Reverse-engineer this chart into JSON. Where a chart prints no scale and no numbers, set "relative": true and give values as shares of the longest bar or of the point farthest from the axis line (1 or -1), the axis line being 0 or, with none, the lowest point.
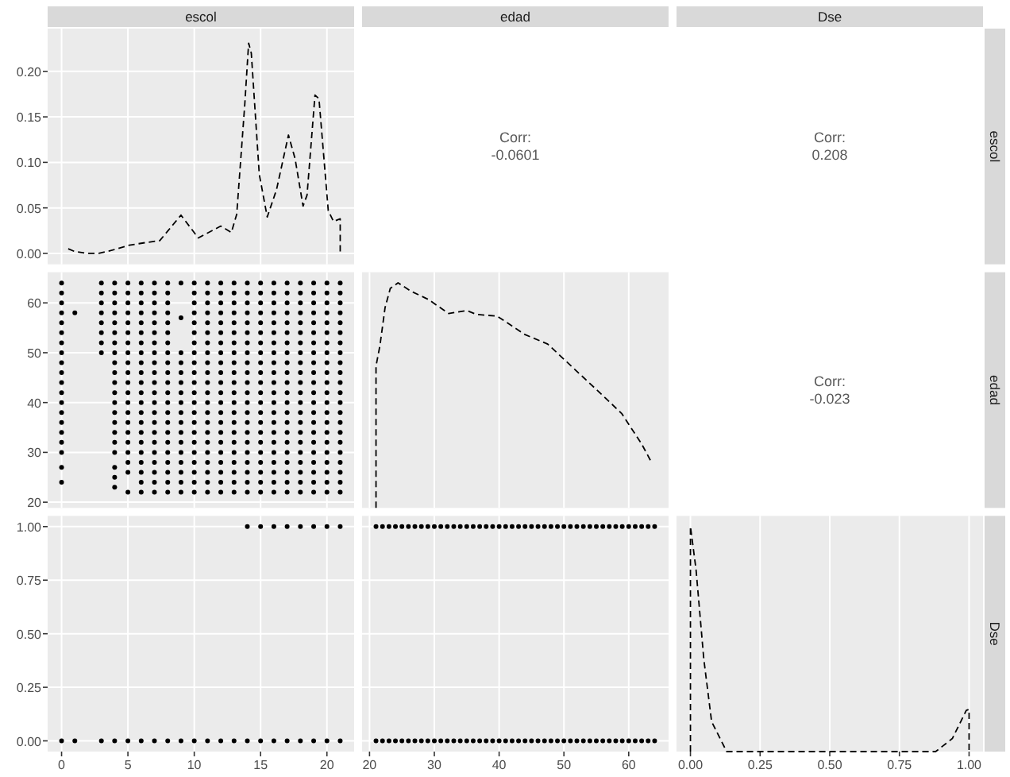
{
  "chart_data": [
    {
      "type": "line",
      "title": "escol",
      "x": [
        0.5,
        1,
        1.9,
        2.8,
        3.7,
        5.1,
        6.4,
        7.4,
        9,
        10.3,
        12,
        12.8,
        13.2,
        13.8,
        14.1,
        14.3,
        14.9,
        15.5,
        16.2,
        17.1,
        17.6,
        18.2,
        18.5,
        19.1,
        19.4,
        20.1,
        20.5,
        21,
        21
      ],
      "values": [
        0.005,
        0.002,
        0,
        0,
        0.003,
        0.009,
        0.012,
        0.014,
        0.042,
        0.017,
        0.03,
        0.023,
        0.043,
        0.162,
        0.231,
        0.22,
        0.087,
        0.04,
        0.07,
        0.13,
        0.104,
        0.052,
        0.064,
        0.174,
        0.17,
        0.047,
        0.035,
        0.038,
        0
      ],
      "color": "#000000",
      "line_style": "dashed",
      "xlim": [
        -1.05,
        22.05
      ],
      "xticks": [
        0,
        5,
        10,
        15,
        20
      ],
      "ylim": [
        -0.012,
        0.247
      ],
      "yticks": [
        {
          "value": 0,
          "label": "0.00"
        },
        {
          "value": 0.05,
          "label": "0.05"
        },
        {
          "value": 0.1,
          "label": "0.10"
        },
        {
          "value": 0.15,
          "label": "0.15"
        },
        {
          "value": 0.2,
          "label": "0.20"
        }
      ],
      "grid": true,
      "tick_labels": "y"
    },
    {
      "type": "other",
      "title": "edad",
      "annotations": [
        "Corr:",
        "-0.0601"
      ]
    },
    {
      "type": "other",
      "title": "Dse",
      "y2label": "escol",
      "annotations": [
        "Corr:",
        "0.208"
      ]
    },
    {
      "type": "scatter",
      "marker": "circle",
      "xlim": [
        -1.05,
        22.05
      ],
      "xticks": [
        0,
        5,
        10,
        15,
        20
      ],
      "ylim": [
        18.85,
        66.15
      ],
      "yticks": [
        20,
        30,
        40,
        50,
        60
      ],
      "grid": true,
      "tick_labels": "y",
      "series": [
        {
          "color": "#000000",
          "x": [
            0,
            0,
            0,
            0,
            0,
            0,
            0,
            0,
            0,
            0,
            0,
            0,
            0,
            0,
            0,
            0,
            0,
            0,
            0,
            0
          ],
          "values": [
            24,
            27,
            30,
            32,
            34,
            36,
            38,
            40,
            42,
            44,
            46,
            48,
            50,
            52,
            54,
            56,
            58,
            60,
            62,
            64
          ]
        },
        {
          "color": "#000000",
          "x": [
            1
          ],
          "values": [
            58
          ]
        },
        {
          "color": "#000000",
          "x": [
            3,
            3,
            3,
            3,
            3,
            3,
            3,
            3
          ],
          "values": [
            50,
            52,
            54,
            56,
            58,
            60,
            62,
            64
          ]
        },
        {
          "color": "#000000",
          "x": [
            4,
            4,
            4,
            4,
            4,
            4,
            4,
            4,
            4,
            4,
            4,
            4,
            4,
            4,
            4,
            4,
            4,
            4,
            4,
            4,
            4
          ],
          "values": [
            23,
            25,
            27,
            30,
            32,
            34,
            36,
            38,
            40,
            42,
            44,
            46,
            48,
            50,
            52,
            54,
            56,
            58,
            60,
            62,
            64
          ]
        },
        {
          "color": "#000000",
          "x": [
            5,
            5,
            5,
            5,
            5,
            5,
            5,
            5,
            5,
            5,
            5,
            5,
            5,
            5,
            5,
            5,
            5,
            5,
            5,
            5,
            5
          ],
          "values": [
            22,
            26,
            28,
            30,
            32,
            34,
            36,
            38,
            40,
            42,
            44,
            46,
            48,
            50,
            52,
            54,
            56,
            58,
            60,
            62,
            64
          ]
        },
        {
          "color": "#000000",
          "x": [
            6,
            6,
            6,
            6,
            6,
            6,
            6,
            6,
            6,
            6,
            6,
            6,
            6,
            6,
            6,
            6,
            6,
            6,
            6,
            6,
            6,
            6
          ],
          "values": [
            22,
            24,
            26,
            28,
            30,
            32,
            34,
            36,
            38,
            40,
            42,
            44,
            46,
            48,
            50,
            52,
            54,
            56,
            58,
            60,
            62,
            64
          ]
        },
        {
          "color": "#000000",
          "x": [
            7,
            7,
            7,
            7,
            7,
            7,
            7,
            7,
            7,
            7,
            7,
            7,
            7,
            7,
            7,
            7,
            7,
            7,
            7,
            7,
            7,
            7
          ],
          "values": [
            22,
            24,
            26,
            28,
            30,
            32,
            34,
            36,
            38,
            40,
            42,
            44,
            46,
            48,
            50,
            52,
            54,
            56,
            58,
            60,
            62,
            64
          ]
        },
        {
          "color": "#000000",
          "x": [
            8,
            8,
            8,
            8,
            8,
            8,
            8,
            8,
            8,
            8,
            8,
            8,
            8,
            8,
            8,
            8,
            8,
            8,
            8,
            8,
            8,
            8
          ],
          "values": [
            22,
            24,
            26,
            28,
            30,
            32,
            34,
            36,
            38,
            40,
            42,
            44,
            46,
            48,
            50,
            52,
            54,
            56,
            58,
            60,
            62,
            64
          ]
        },
        {
          "color": "#000000",
          "x": [
            9,
            9,
            9,
            9,
            9,
            9,
            9,
            9,
            9,
            9,
            9,
            9,
            9,
            9,
            9,
            9,
            9
          ],
          "values": [
            22,
            24,
            26,
            28,
            30,
            32,
            34,
            36,
            38,
            40,
            42,
            44,
            46,
            48,
            50,
            57,
            64
          ]
        },
        {
          "color": "#000000",
          "x": [
            10,
            10,
            10,
            10,
            10,
            10,
            10,
            10,
            10,
            10,
            10,
            10,
            10,
            10,
            10,
            10,
            10,
            10,
            10,
            10,
            10,
            10
          ],
          "values": [
            22,
            24,
            26,
            28,
            30,
            32,
            34,
            36,
            38,
            40,
            42,
            44,
            46,
            48,
            50,
            52,
            54,
            56,
            58,
            60,
            62,
            64
          ]
        },
        {
          "color": "#000000",
          "x": [
            11,
            11,
            11,
            11,
            11,
            11,
            11,
            11,
            11,
            11,
            11,
            11,
            11,
            11,
            11,
            11,
            11,
            11,
            11,
            11,
            11,
            11
          ],
          "values": [
            22,
            24,
            26,
            28,
            30,
            32,
            34,
            36,
            38,
            40,
            42,
            44,
            46,
            48,
            50,
            52,
            54,
            56,
            58,
            60,
            62,
            64
          ]
        },
        {
          "color": "#000000",
          "x": [
            12,
            12,
            12,
            12,
            12,
            12,
            12,
            12,
            12,
            12,
            12,
            12,
            12,
            12,
            12,
            12,
            12,
            12,
            12,
            12,
            12,
            12
          ],
          "values": [
            22,
            24,
            26,
            28,
            30,
            32,
            34,
            36,
            38,
            40,
            42,
            44,
            46,
            48,
            50,
            52,
            54,
            56,
            58,
            60,
            62,
            64
          ]
        },
        {
          "color": "#000000",
          "x": [
            13,
            13,
            13,
            13,
            13,
            13,
            13,
            13,
            13,
            13,
            13,
            13,
            13,
            13,
            13,
            13,
            13,
            13,
            13,
            13,
            13,
            13
          ],
          "values": [
            22,
            24,
            26,
            28,
            30,
            32,
            34,
            36,
            38,
            40,
            42,
            44,
            46,
            48,
            50,
            52,
            54,
            56,
            58,
            60,
            62,
            64
          ]
        },
        {
          "color": "#000000",
          "x": [
            14,
            14,
            14,
            14,
            14,
            14,
            14,
            14,
            14,
            14,
            14,
            14,
            14,
            14,
            14,
            14,
            14,
            14,
            14,
            14,
            14,
            14
          ],
          "values": [
            22,
            24,
            26,
            28,
            30,
            32,
            34,
            36,
            38,
            40,
            42,
            44,
            46,
            48,
            50,
            52,
            54,
            56,
            58,
            60,
            62,
            64
          ]
        },
        {
          "color": "#000000",
          "x": [
            15,
            15,
            15,
            15,
            15,
            15,
            15,
            15,
            15,
            15,
            15,
            15,
            15,
            15,
            15,
            15,
            15,
            15,
            15,
            15,
            15,
            15
          ],
          "values": [
            22,
            24,
            26,
            28,
            30,
            32,
            34,
            36,
            38,
            40,
            42,
            44,
            46,
            48,
            50,
            52,
            54,
            56,
            58,
            60,
            62,
            64
          ]
        },
        {
          "color": "#000000",
          "x": [
            16,
            16,
            16,
            16,
            16,
            16,
            16,
            16,
            16,
            16,
            16,
            16,
            16,
            16,
            16,
            16,
            16,
            16,
            16,
            16,
            16,
            16
          ],
          "values": [
            22,
            24,
            26,
            28,
            30,
            32,
            34,
            36,
            38,
            40,
            42,
            44,
            46,
            48,
            50,
            52,
            54,
            56,
            58,
            60,
            62,
            64
          ]
        },
        {
          "color": "#000000",
          "x": [
            17,
            17,
            17,
            17,
            17,
            17,
            17,
            17,
            17,
            17,
            17,
            17,
            17,
            17,
            17,
            17,
            17,
            17,
            17,
            17,
            17,
            17
          ],
          "values": [
            22,
            24,
            26,
            28,
            30,
            32,
            34,
            36,
            38,
            40,
            42,
            44,
            46,
            48,
            50,
            52,
            54,
            56,
            58,
            60,
            62,
            64
          ]
        },
        {
          "color": "#000000",
          "x": [
            18,
            18,
            18,
            18,
            18,
            18,
            18,
            18,
            18,
            18,
            18,
            18,
            18,
            18,
            18,
            18,
            18,
            18,
            18,
            18,
            18,
            18
          ],
          "values": [
            22,
            24,
            26,
            28,
            30,
            32,
            34,
            36,
            38,
            40,
            42,
            44,
            46,
            48,
            50,
            52,
            54,
            56,
            58,
            60,
            62,
            64
          ]
        },
        {
          "color": "#000000",
          "x": [
            19,
            19,
            19,
            19,
            19,
            19,
            19,
            19,
            19,
            19,
            19,
            19,
            19,
            19,
            19,
            19,
            19,
            19,
            19,
            19,
            19,
            19
          ],
          "values": [
            22,
            24,
            26,
            28,
            30,
            32,
            34,
            36,
            38,
            40,
            42,
            44,
            46,
            48,
            50,
            52,
            54,
            56,
            58,
            60,
            62,
            64
          ]
        },
        {
          "color": "#000000",
          "x": [
            20,
            20,
            20,
            20,
            20,
            20,
            20,
            20,
            20,
            20,
            20,
            20,
            20,
            20,
            20,
            20,
            20,
            20,
            20,
            20,
            20,
            20
          ],
          "values": [
            22,
            24,
            26,
            28,
            30,
            32,
            34,
            36,
            38,
            40,
            42,
            44,
            46,
            48,
            50,
            52,
            54,
            56,
            58,
            60,
            62,
            64
          ]
        },
        {
          "color": "#000000",
          "x": [
            21,
            21,
            21,
            21,
            21,
            21,
            21,
            21,
            21,
            21,
            21,
            21,
            21,
            21,
            21,
            21,
            21,
            21,
            21,
            21,
            21,
            21
          ],
          "values": [
            22,
            24,
            26,
            28,
            30,
            32,
            34,
            36,
            38,
            40,
            42,
            44,
            46,
            48,
            50,
            52,
            54,
            56,
            58,
            60,
            62,
            64
          ]
        }
      ]
    },
    {
      "type": "line",
      "relative": true,
      "x": [
        21,
        21,
        21.6,
        22.4,
        23.2,
        24.4,
        26.4,
        29.1,
        32.2,
        35,
        36.5,
        39.7,
        44,
        47.5,
        53,
        56.2,
        58.9,
        62,
        63.6
      ],
      "values": [
        0,
        0.63,
        0.72,
        0.89,
        0.975,
        1,
        0.963,
        0.926,
        0.864,
        0.877,
        0.86,
        0.852,
        0.77,
        0.728,
        0.58,
        0.494,
        0.42,
        0.284,
        0.198
      ],
      "color": "#000000",
      "line_style": "dashed",
      "xlim": [
        18.85,
        66.15
      ],
      "xticks": [
        20,
        30,
        40,
        50,
        60
      ],
      "grid": "x",
      "tick_labels": false
    },
    {
      "type": "other",
      "y2label": "edad",
      "annotations": [
        "Corr:",
        "-0.023"
      ]
    },
    {
      "type": "scatter",
      "marker": "circle",
      "xlim": [
        -1.05,
        22.05
      ],
      "xticks": [
        0,
        5,
        10,
        15,
        20
      ],
      "ylim": [
        -0.05,
        1.05
      ],
      "yticks": [
        {
          "value": 0,
          "label": "0.00"
        },
        {
          "value": 0.25,
          "label": "0.25"
        },
        {
          "value": 0.5,
          "label": "0.50"
        },
        {
          "value": 0.75,
          "label": "0.75"
        },
        {
          "value": 1,
          "label": "1.00"
        }
      ],
      "grid": true,
      "series": [
        {
          "color": "#000000",
          "x": [
            0,
            1,
            3,
            4,
            5,
            6,
            7,
            8,
            9,
            10,
            11,
            12,
            13,
            14,
            15,
            16,
            17,
            18,
            19,
            20,
            21
          ],
          "values": [
            0,
            0,
            0,
            0,
            0,
            0,
            0,
            0,
            0,
            0,
            0,
            0,
            0,
            0,
            0,
            0,
            0,
            0,
            0,
            0,
            0
          ]
        },
        {
          "color": "#000000",
          "x": [
            14,
            15,
            16,
            17,
            18,
            19,
            20,
            21
          ],
          "values": [
            1,
            1,
            1,
            1,
            1,
            1,
            1,
            1
          ]
        }
      ]
    },
    {
      "type": "scatter",
      "marker": "circle",
      "xlim": [
        18.85,
        66.15
      ],
      "xticks": [
        20,
        30,
        40,
        50,
        60
      ],
      "ylim": [
        -0.05,
        1.05
      ],
      "yticks": [
        0,
        0.25,
        0.5,
        0.75,
        1
      ],
      "grid": true,
      "tick_labels": "x",
      "series": [
        {
          "color": "#000000",
          "x": [
            21,
            22,
            23,
            24,
            25,
            26,
            27,
            28,
            29,
            30,
            31,
            32,
            33,
            34,
            35,
            36,
            37,
            38,
            39,
            40,
            41,
            42,
            43,
            44,
            45,
            46,
            47,
            48,
            49,
            50,
            51,
            52,
            53,
            54,
            55,
            56,
            57,
            58,
            59,
            60,
            61,
            62,
            63,
            64
          ],
          "values": [
            0,
            0,
            0,
            0,
            0,
            0,
            0,
            0,
            0,
            0,
            0,
            0,
            0,
            0,
            0,
            0,
            0,
            0,
            0,
            0,
            0,
            0,
            0,
            0,
            0,
            0,
            0,
            0,
            0,
            0,
            0,
            0,
            0,
            0,
            0,
            0,
            0,
            0,
            0,
            0,
            0,
            0,
            0,
            0
          ]
        },
        {
          "color": "#000000",
          "x": [
            21,
            22,
            23,
            24,
            25,
            26,
            27,
            28,
            29,
            30,
            31,
            32,
            33,
            34,
            35,
            36,
            37,
            38,
            39,
            40,
            41,
            42,
            43,
            44,
            45,
            46,
            47,
            48,
            49,
            50,
            51,
            52,
            53,
            54,
            55,
            56,
            57,
            58,
            59,
            60,
            61,
            62,
            63,
            64
          ],
          "values": [
            1,
            1,
            1,
            1,
            1,
            1,
            1,
            1,
            1,
            1,
            1,
            1,
            1,
            1,
            1,
            1,
            1,
            1,
            1,
            1,
            1,
            1,
            1,
            1,
            1,
            1,
            1,
            1,
            1,
            1,
            1,
            1,
            1,
            1,
            1,
            1,
            1,
            1,
            1,
            1,
            1,
            1,
            1,
            1
          ]
        }
      ]
    },
    {
      "type": "line",
      "relative": true,
      "y2label": "Dse",
      "x": [
        0,
        0,
        0.02,
        0.048,
        0.076,
        0.13,
        0.88,
        0.94,
        0.99,
        1,
        1
      ],
      "values": [
        0,
        1,
        0.81,
        0.41,
        0.133,
        0,
        0,
        0.058,
        0.183,
        0.188,
        0
      ],
      "color": "#000000",
      "line_style": "dashed",
      "xlim": [
        -0.05,
        1.05
      ],
      "xticks": [
        {
          "value": 0,
          "label": "0.00"
        },
        {
          "value": 0.25,
          "label": "0.25"
        },
        {
          "value": 0.5,
          "label": "0.50"
        },
        {
          "value": 0.75,
          "label": "0.75"
        },
        {
          "value": 1,
          "label": "1.00"
        }
      ],
      "grid": "x",
      "tick_labels": "x"
    }
  ]
}
